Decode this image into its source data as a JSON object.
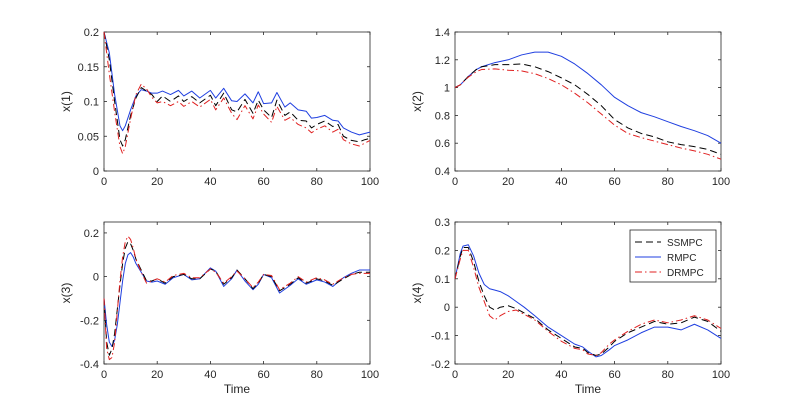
{
  "colors": {
    "ssmpc": "#000000",
    "rmpc": "#1f3fe0",
    "drmpc": "#e02020",
    "axis": "#262626",
    "background": "#ffffff"
  },
  "chart_data": [
    {
      "type": "line",
      "title": "",
      "xlabel": "",
      "ylabel": "x(1)",
      "xlim": [
        0,
        100
      ],
      "ylim": [
        0,
        0.2
      ],
      "xticks": [
        0,
        20,
        40,
        60,
        80,
        100
      ],
      "yticks": [
        0,
        0.05,
        0.1,
        0.15,
        0.2
      ],
      "xtick_labels": [
        "0",
        "20",
        "40",
        "60",
        "80",
        "100"
      ],
      "ytick_labels": [
        "0",
        "0.05",
        "0.1",
        "0.15",
        "0.2"
      ],
      "x": [
        0,
        2,
        4,
        6,
        7,
        8,
        10,
        12,
        14,
        16,
        18,
        20,
        22,
        25,
        28,
        30,
        33,
        36,
        40,
        42,
        45,
        48,
        50,
        53,
        56,
        58,
        60,
        63,
        65,
        68,
        70,
        73,
        76,
        78,
        80,
        83,
        86,
        88,
        90,
        93,
        96,
        98,
        100
      ],
      "series": [
        {
          "name": "SSMPC",
          "style": "dashed",
          "values": [
            0.2,
            0.16,
            0.1,
            0.045,
            0.036,
            0.045,
            0.08,
            0.105,
            0.12,
            0.115,
            0.11,
            0.1,
            0.108,
            0.1,
            0.108,
            0.1,
            0.107,
            0.098,
            0.109,
            0.094,
            0.112,
            0.088,
            0.085,
            0.103,
            0.083,
            0.102,
            0.088,
            0.077,
            0.102,
            0.08,
            0.085,
            0.073,
            0.072,
            0.062,
            0.067,
            0.072,
            0.064,
            0.067,
            0.05,
            0.044,
            0.042,
            0.045,
            0.047
          ]
        },
        {
          "name": "RMPC",
          "style": "solid",
          "values": [
            0.2,
            0.17,
            0.11,
            0.065,
            0.058,
            0.065,
            0.088,
            0.108,
            0.117,
            0.115,
            0.112,
            0.112,
            0.115,
            0.11,
            0.116,
            0.108,
            0.115,
            0.105,
            0.116,
            0.105,
            0.119,
            0.101,
            0.1,
            0.111,
            0.098,
            0.114,
            0.097,
            0.098,
            0.113,
            0.092,
            0.098,
            0.088,
            0.086,
            0.076,
            0.077,
            0.08,
            0.073,
            0.072,
            0.062,
            0.056,
            0.052,
            0.054,
            0.056
          ]
        },
        {
          "name": "DRMPC",
          "style": "dashdot",
          "values": [
            0.2,
            0.14,
            0.085,
            0.035,
            0.025,
            0.035,
            0.075,
            0.11,
            0.125,
            0.118,
            0.106,
            0.098,
            0.1,
            0.094,
            0.1,
            0.093,
            0.1,
            0.092,
            0.103,
            0.088,
            0.105,
            0.083,
            0.074,
            0.094,
            0.075,
            0.095,
            0.082,
            0.07,
            0.093,
            0.073,
            0.077,
            0.067,
            0.062,
            0.055,
            0.06,
            0.065,
            0.056,
            0.06,
            0.045,
            0.039,
            0.036,
            0.04,
            0.044
          ]
        }
      ]
    },
    {
      "type": "line",
      "title": "",
      "xlabel": "",
      "ylabel": "x(2)",
      "xlim": [
        0,
        100
      ],
      "ylim": [
        0.4,
        1.4
      ],
      "xticks": [
        0,
        20,
        40,
        60,
        80,
        100
      ],
      "yticks": [
        0.4,
        0.6,
        0.8,
        1,
        1.2,
        1.4
      ],
      "xtick_labels": [
        "0",
        "20",
        "40",
        "60",
        "80",
        "100"
      ],
      "ytick_labels": [
        "0.4",
        "0.6",
        "0.8",
        "1",
        "1.2",
        "1.4"
      ],
      "x": [
        0,
        2,
        5,
        8,
        10,
        15,
        20,
        25,
        30,
        35,
        40,
        45,
        50,
        55,
        60,
        65,
        70,
        75,
        80,
        85,
        90,
        95,
        100
      ],
      "series": [
        {
          "name": "SSMPC",
          "style": "dashed",
          "values": [
            1.0,
            1.02,
            1.08,
            1.13,
            1.15,
            1.165,
            1.165,
            1.17,
            1.15,
            1.115,
            1.07,
            1.02,
            0.95,
            0.87,
            0.77,
            0.71,
            0.67,
            0.645,
            0.61,
            0.59,
            0.575,
            0.555,
            0.52
          ]
        },
        {
          "name": "RMPC",
          "style": "solid",
          "values": [
            1.0,
            1.02,
            1.08,
            1.13,
            1.15,
            1.18,
            1.2,
            1.235,
            1.255,
            1.255,
            1.225,
            1.17,
            1.1,
            1.02,
            0.93,
            0.87,
            0.82,
            0.79,
            0.755,
            0.72,
            0.69,
            0.655,
            0.6
          ]
        },
        {
          "name": "DRMPC",
          "style": "dashdot",
          "values": [
            1.0,
            1.02,
            1.075,
            1.115,
            1.13,
            1.135,
            1.125,
            1.12,
            1.1,
            1.065,
            1.02,
            0.96,
            0.89,
            0.81,
            0.73,
            0.67,
            0.64,
            0.615,
            0.59,
            0.565,
            0.545,
            0.52,
            0.485
          ]
        }
      ]
    },
    {
      "type": "line",
      "title": "",
      "xlabel": "Time",
      "ylabel": "x(3)",
      "xlim": [
        0,
        100
      ],
      "ylim": [
        -0.4,
        0.25
      ],
      "xticks": [
        0,
        20,
        40,
        60,
        80,
        100
      ],
      "yticks": [
        -0.4,
        -0.2,
        0,
        0.2
      ],
      "xtick_labels": [
        "0",
        "20",
        "40",
        "60",
        "80",
        "100"
      ],
      "ytick_labels": [
        "-0.4",
        "-0.2",
        "0",
        "0.2"
      ],
      "x": [
        0,
        1,
        2,
        3,
        4,
        5,
        6,
        7,
        8,
        9,
        10,
        11,
        12,
        14,
        16,
        18,
        20,
        23,
        26,
        30,
        33,
        36,
        40,
        42,
        45,
        48,
        50,
        53,
        56,
        58,
        60,
        63,
        66,
        70,
        73,
        76,
        80,
        83,
        86,
        90,
        93,
        96,
        100
      ],
      "series": [
        {
          "name": "SSMPC",
          "style": "dashed",
          "values": [
            -0.1,
            -0.3,
            -0.36,
            -0.33,
            -0.26,
            -0.15,
            -0.04,
            0.06,
            0.13,
            0.16,
            0.15,
            0.12,
            0.08,
            0.03,
            -0.02,
            -0.02,
            -0.01,
            -0.03,
            0.0,
            0.01,
            -0.01,
            -0.01,
            0.035,
            0.025,
            -0.035,
            -0.005,
            0.03,
            -0.01,
            -0.055,
            -0.03,
            0.01,
            0.0,
            -0.065,
            -0.035,
            -0.005,
            -0.03,
            -0.01,
            -0.02,
            -0.04,
            -0.01,
            0.01,
            0.02,
            0.02
          ]
        },
        {
          "name": "RMPC",
          "style": "solid",
          "values": [
            -0.1,
            -0.22,
            -0.3,
            -0.32,
            -0.29,
            -0.22,
            -0.12,
            -0.02,
            0.06,
            0.1,
            0.11,
            0.09,
            0.06,
            0.02,
            -0.02,
            -0.025,
            -0.02,
            -0.035,
            -0.005,
            0.01,
            -0.015,
            -0.01,
            0.04,
            0.025,
            -0.045,
            -0.01,
            0.03,
            -0.02,
            -0.06,
            -0.035,
            0.01,
            -0.005,
            -0.075,
            -0.04,
            -0.01,
            -0.035,
            -0.015,
            -0.025,
            -0.045,
            -0.005,
            0.015,
            0.03,
            0.03
          ]
        },
        {
          "name": "DRMPC",
          "style": "dashdot",
          "values": [
            -0.1,
            -0.33,
            -0.38,
            -0.37,
            -0.3,
            -0.16,
            -0.02,
            0.09,
            0.16,
            0.185,
            0.17,
            0.13,
            0.08,
            0.02,
            -0.03,
            -0.02,
            -0.01,
            -0.025,
            0.005,
            0.015,
            -0.005,
            -0.005,
            0.035,
            0.02,
            -0.03,
            0.0,
            0.025,
            -0.01,
            -0.05,
            -0.025,
            0.01,
            0.005,
            -0.06,
            -0.03,
            0.0,
            -0.025,
            -0.005,
            -0.015,
            -0.035,
            -0.005,
            0.01,
            0.015,
            0.015
          ]
        }
      ]
    },
    {
      "type": "line",
      "title": "",
      "xlabel": "Time",
      "ylabel": "x(4)",
      "xlim": [
        0,
        100
      ],
      "ylim": [
        -0.2,
        0.3
      ],
      "xticks": [
        0,
        20,
        40,
        60,
        80,
        100
      ],
      "yticks": [
        -0.2,
        -0.1,
        0,
        0.1,
        0.2,
        0.3
      ],
      "xtick_labels": [
        "0",
        "20",
        "40",
        "60",
        "80",
        "100"
      ],
      "ytick_labels": [
        "-0.2",
        "-0.1",
        "0",
        "0.1",
        "0.2",
        "0.3"
      ],
      "x": [
        0,
        2,
        3,
        5,
        7,
        9,
        11,
        13,
        15,
        17,
        20,
        23,
        26,
        30,
        35,
        40,
        45,
        48,
        50,
        53,
        55,
        58,
        60,
        65,
        70,
        75,
        80,
        85,
        90,
        95,
        100
      ],
      "series": [
        {
          "name": "SSMPC",
          "style": "dashed",
          "values": [
            0.1,
            0.18,
            0.21,
            0.21,
            0.16,
            0.09,
            0.04,
            0.0,
            -0.01,
            0.0,
            0.005,
            -0.005,
            -0.02,
            -0.04,
            -0.08,
            -0.11,
            -0.14,
            -0.145,
            -0.16,
            -0.17,
            -0.165,
            -0.14,
            -0.12,
            -0.09,
            -0.07,
            -0.05,
            -0.06,
            -0.055,
            -0.035,
            -0.05,
            -0.085
          ]
        },
        {
          "name": "RMPC",
          "style": "solid",
          "values": [
            0.1,
            0.19,
            0.215,
            0.22,
            0.18,
            0.12,
            0.08,
            0.065,
            0.06,
            0.055,
            0.04,
            0.02,
            0.0,
            -0.03,
            -0.07,
            -0.1,
            -0.13,
            -0.14,
            -0.155,
            -0.175,
            -0.17,
            -0.15,
            -0.135,
            -0.115,
            -0.09,
            -0.07,
            -0.07,
            -0.08,
            -0.06,
            -0.08,
            -0.11
          ]
        },
        {
          "name": "DRMPC",
          "style": "dashdot",
          "values": [
            0.1,
            0.17,
            0.2,
            0.2,
            0.14,
            0.07,
            0.02,
            -0.03,
            -0.045,
            -0.03,
            -0.015,
            -0.01,
            -0.025,
            -0.045,
            -0.085,
            -0.12,
            -0.145,
            -0.15,
            -0.165,
            -0.17,
            -0.16,
            -0.13,
            -0.115,
            -0.085,
            -0.06,
            -0.045,
            -0.055,
            -0.045,
            -0.03,
            -0.045,
            -0.075
          ]
        }
      ],
      "legend": {
        "placement": "top-right",
        "entries": [
          "SSMPC",
          "RMPC",
          "DRMPC"
        ]
      }
    }
  ]
}
